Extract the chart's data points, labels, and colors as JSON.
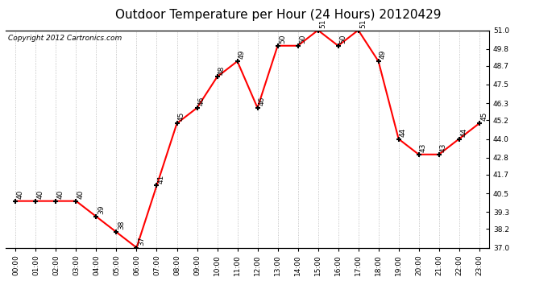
{
  "title": "Outdoor Temperature per Hour (24 Hours) 20120429",
  "copyright_text": "Copyright 2012 Cartronics.com",
  "hours": [
    "00:00",
    "01:00",
    "02:00",
    "03:00",
    "04:00",
    "05:00",
    "06:00",
    "07:00",
    "08:00",
    "09:00",
    "10:00",
    "11:00",
    "12:00",
    "13:00",
    "14:00",
    "15:00",
    "16:00",
    "17:00",
    "18:00",
    "19:00",
    "20:00",
    "21:00",
    "22:00",
    "23:00"
  ],
  "temperatures": [
    40,
    40,
    40,
    40,
    39,
    38,
    37,
    41,
    45,
    46,
    48,
    49,
    46,
    50,
    50,
    51,
    50,
    51,
    49,
    44,
    43,
    43,
    44,
    45
  ],
  "ylim_min": 37.0,
  "ylim_max": 51.0,
  "yticks": [
    37.0,
    38.2,
    39.3,
    40.5,
    41.7,
    42.8,
    44.0,
    45.2,
    46.3,
    47.5,
    48.7,
    49.8,
    51.0
  ],
  "line_color": "red",
  "marker_color": "black",
  "bg_color": "white",
  "grid_color": "#b0b0b0",
  "title_fontsize": 11,
  "copyright_fontsize": 6.5,
  "label_fontsize": 6.5,
  "annot_fontsize": 6.5
}
